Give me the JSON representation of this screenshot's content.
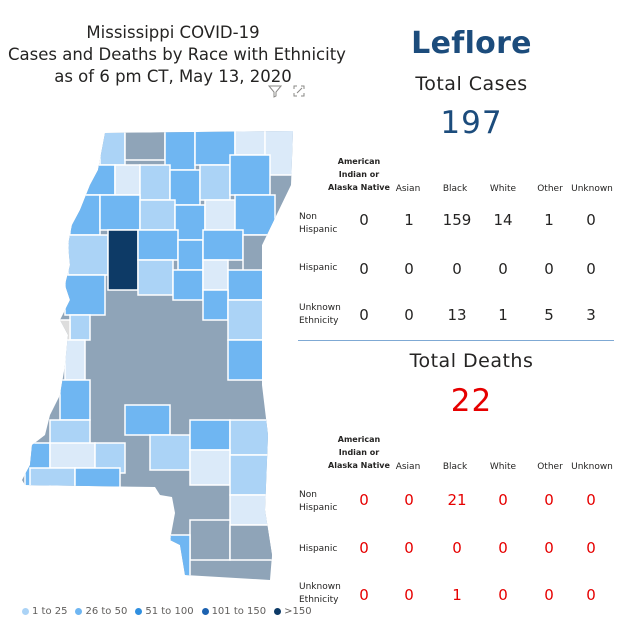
{
  "map_panel": {
    "title_lines": [
      "Mississippi COVID-19",
      "Cases and Deaths by Race with Ethnicity",
      "as of 6 pm CT, May 13, 2020"
    ],
    "filter_icon": "filter-icon",
    "focus_icon": "focus-mode-icon",
    "legend": [
      {
        "label": "1 to 25",
        "color": "#abd3f6"
      },
      {
        "label": "26 to 50",
        "color": "#6fb6f2"
      },
      {
        "label": "51 to 100",
        "color": "#2f8fe0"
      },
      {
        "label": "101 to 150",
        "color": "#1c62b0"
      },
      {
        "label": ">150",
        "color": "#0d3a66"
      }
    ],
    "colors": {
      "dark_gray_county": "#8fa4b8",
      "selected_county": "#0d3a66",
      "no_data_county": "#dddddd",
      "faint_county": "#dbeaf9"
    }
  },
  "county": "Leflore",
  "cases": {
    "title": "Total Cases",
    "total": "197",
    "columns": [
      "American Indian or Alaska Native",
      "Asian",
      "Black",
      "White",
      "Other",
      "Unknown"
    ],
    "rows": [
      {
        "label": "Non Hispanic",
        "values": [
          "0",
          "1",
          "159",
          "14",
          "1",
          "0"
        ]
      },
      {
        "label": "Hispanic",
        "values": [
          "0",
          "0",
          "0",
          "0",
          "0",
          "0"
        ]
      },
      {
        "label": "Unknown Ethnicity",
        "values": [
          "0",
          "0",
          "13",
          "1",
          "5",
          "3"
        ]
      }
    ]
  },
  "deaths": {
    "title": "Total Deaths",
    "total": "22",
    "columns": [
      "American Indian or Alaska Native",
      "Asian",
      "Black",
      "White",
      "Other",
      "Unknown"
    ],
    "rows": [
      {
        "label": "Non Hispanic",
        "values": [
          "0",
          "0",
          "21",
          "0",
          "0",
          "0"
        ]
      },
      {
        "label": "Hispanic",
        "values": [
          "0",
          "0",
          "0",
          "0",
          "0",
          "0"
        ]
      },
      {
        "label": "Unknown Ethnicity",
        "values": [
          "0",
          "0",
          "1",
          "0",
          "0",
          "0"
        ]
      }
    ]
  },
  "colors": {
    "county_title": "#1c4c7c",
    "cases_total": "#1c4c7c",
    "deaths_total": "#e60000",
    "separator": "#7fa9d4"
  }
}
